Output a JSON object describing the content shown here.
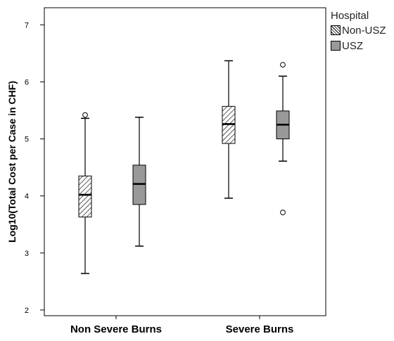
{
  "chart_data": {
    "type": "box",
    "ylabel": "Log10(Total Cost per Case in CHF)",
    "xlabel": "",
    "categories": [
      "Non Severe Burns",
      "Severe Burns"
    ],
    "ylim": [
      1.9,
      7.3
    ],
    "yticks": [
      "2",
      "3",
      "4",
      "5",
      "6",
      "7"
    ],
    "legend": {
      "title": "Hospital",
      "position": "right"
    },
    "series": [
      {
        "name": "Non-USZ",
        "fill": "hatch",
        "boxes": [
          {
            "min": 2.64,
            "q1": 3.63,
            "median": 4.02,
            "q3": 4.35,
            "max": 5.36,
            "outliers": [
              5.42
            ]
          },
          {
            "min": 3.96,
            "q1": 4.92,
            "median": 5.26,
            "q3": 5.57,
            "max": 6.37,
            "outliers": []
          }
        ]
      },
      {
        "name": "USZ",
        "fill": "#999999",
        "boxes": [
          {
            "min": 3.12,
            "q1": 3.85,
            "median": 4.21,
            "q3": 4.54,
            "max": 5.38,
            "outliers": []
          },
          {
            "min": 4.61,
            "q1": 5.0,
            "median": 5.25,
            "q3": 5.49,
            "max": 6.1,
            "outliers": [
              6.3,
              3.71
            ]
          }
        ]
      }
    ]
  }
}
